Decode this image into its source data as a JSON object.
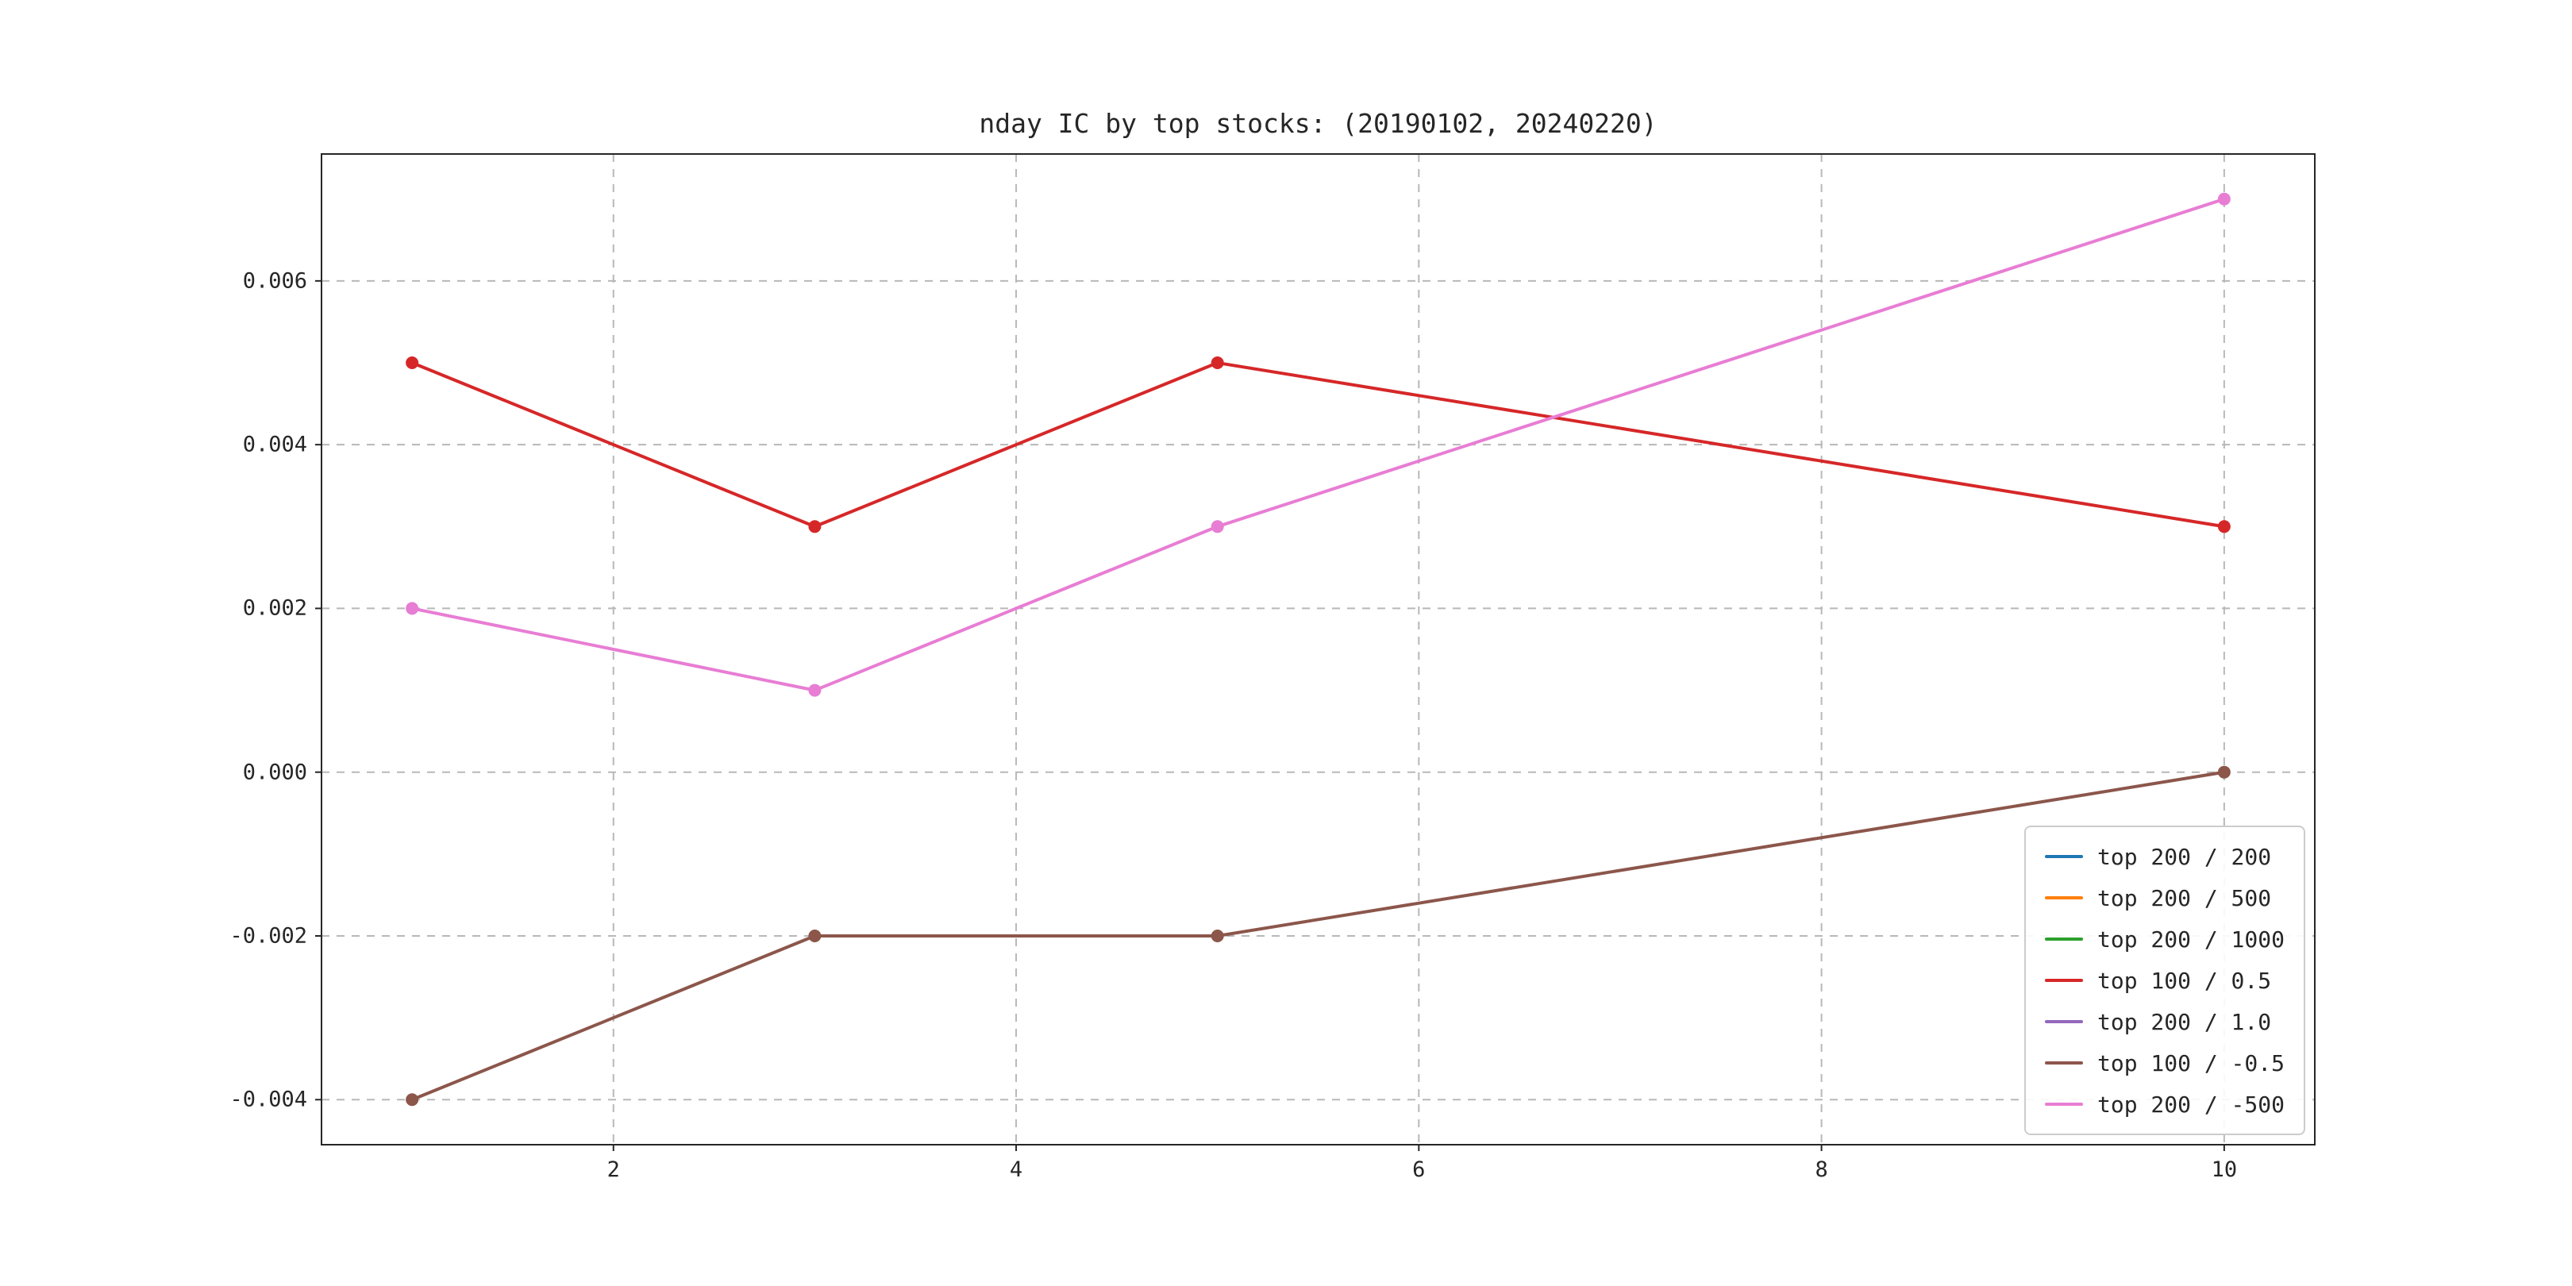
{
  "figure": {
    "background": "#ffffff",
    "spine_color": "#262626",
    "grid_color": "#b8b8b8"
  },
  "chart_data": {
    "type": "line",
    "title": "nday IC by top stocks: (20190102, 20240220)",
    "xlabel": "",
    "ylabel": "",
    "x": [
      1,
      3,
      5,
      10
    ],
    "xlim": [
      0.55,
      10.45
    ],
    "ylim": [
      -0.00455,
      0.00755
    ],
    "xticks": [
      2,
      4,
      6,
      8,
      10
    ],
    "xtick_labels": [
      "2",
      "4",
      "6",
      "8",
      "10"
    ],
    "yticks": [
      -0.004,
      -0.002,
      0.0,
      0.002,
      0.004,
      0.006
    ],
    "ytick_labels": [
      "-0.004",
      "-0.002",
      "0.000",
      "0.002",
      "0.004",
      "0.006"
    ],
    "grid": true,
    "grid_style": "dashed",
    "legend_position": "lower right",
    "marker": "circle",
    "series": [
      {
        "name": "top 200 / 200",
        "color": "#1f77b4",
        "values": null,
        "visible_in_plot": false
      },
      {
        "name": "top 200 / 500",
        "color": "#ff7f0e",
        "values": null,
        "visible_in_plot": false
      },
      {
        "name": "top 200 / 1000",
        "color": "#2ca02c",
        "values": null,
        "visible_in_plot": false
      },
      {
        "name": "top 100 / 0.5",
        "color": "#d62728",
        "values": [
          0.005,
          0.003,
          0.005,
          0.003
        ],
        "visible_in_plot": true
      },
      {
        "name": "top 200 / 1.0",
        "color": "#9467bd",
        "values": null,
        "visible_in_plot": false
      },
      {
        "name": "top 100 / -0.5",
        "color": "#8c564b",
        "values": [
          -0.004,
          -0.002,
          -0.002,
          0.0
        ],
        "visible_in_plot": true
      },
      {
        "name": "top 200 / -500",
        "color": "#e87dd4",
        "values": [
          0.002,
          0.001,
          0.003,
          0.007
        ],
        "visible_in_plot": true
      }
    ]
  }
}
